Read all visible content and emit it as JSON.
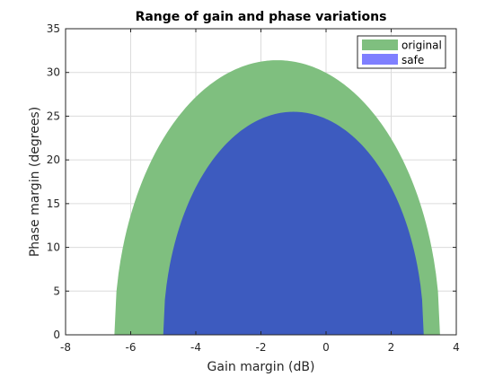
{
  "chart_data": {
    "type": "area",
    "title": "Range of gain and phase variations",
    "xlabel": "Gain margin (dB)",
    "ylabel": "Phase margin (degrees)",
    "xlim": [
      -8,
      4
    ],
    "ylim": [
      0,
      35
    ],
    "xticks": [
      -8,
      -6,
      -4,
      -2,
      0,
      2,
      4
    ],
    "yticks": [
      0,
      5,
      10,
      15,
      20,
      25,
      30,
      35
    ],
    "grid": true,
    "legend_position": "top-right",
    "series": [
      {
        "name": "original",
        "color": "#7fbf7f",
        "x_min": -6.5,
        "x_max": 3.5,
        "x_peak": -1.5,
        "y_peak": 31.4
      },
      {
        "name": "safe",
        "color": "#3d5bbf",
        "legend_color": "#7f7fff",
        "x_min": -5.0,
        "x_max": 3.0,
        "x_peak": -1.0,
        "y_peak": 25.5
      }
    ]
  }
}
